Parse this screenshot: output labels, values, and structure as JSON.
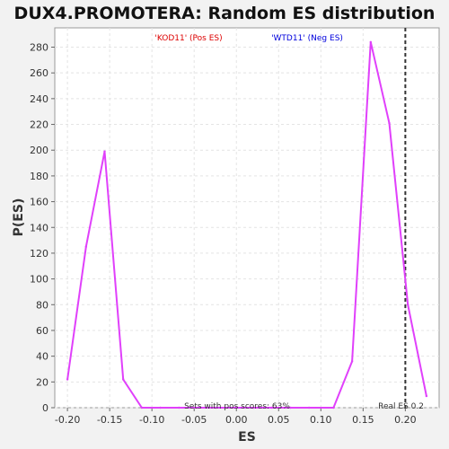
{
  "chart_data": {
    "type": "line",
    "title": "DUX4.PROMOTERA: Random ES distribution",
    "xlabel": "ES",
    "ylabel": "P(ES)",
    "xlim": [
      -0.215,
      0.24
    ],
    "ylim": [
      0,
      295
    ],
    "x_ticks": [
      -0.2,
      -0.15,
      -0.1,
      -0.05,
      0.0,
      0.05,
      0.1,
      0.15,
      0.2
    ],
    "x_tick_labels": [
      "-0.20",
      "-0.15",
      "-0.10",
      "-0.05",
      "0.00",
      "0.05",
      "0.10",
      "0.15",
      "0.20"
    ],
    "y_ticks": [
      0,
      20,
      40,
      60,
      80,
      100,
      120,
      140,
      160,
      180,
      200,
      220,
      240,
      260,
      280
    ],
    "grid": true,
    "series": [
      {
        "color": "#e040fb",
        "x": [
          -0.2,
          -0.178,
          -0.156,
          -0.134,
          -0.112,
          -0.09,
          -0.068,
          -0.046,
          -0.024,
          -0.002,
          0.02,
          0.042,
          0.064,
          0.086,
          0.115,
          0.137,
          0.159,
          0.181,
          0.203,
          0.225
        ],
        "y": [
          22,
          125,
          199,
          22,
          0,
          0,
          0,
          0,
          0,
          0,
          0,
          0,
          0,
          0,
          0,
          36,
          284,
          221,
          80,
          9
        ]
      }
    ],
    "real_es": 0.2,
    "real_es_label": "Real ES 0.2",
    "legend_pos": "'KOD11' (Pos ES)",
    "legend_neg": "'WTD11' (Neg ES)",
    "pos_color": "#dd0000",
    "neg_color": "#0000dd",
    "sets_label": "Sets with pos scores: 63%"
  }
}
